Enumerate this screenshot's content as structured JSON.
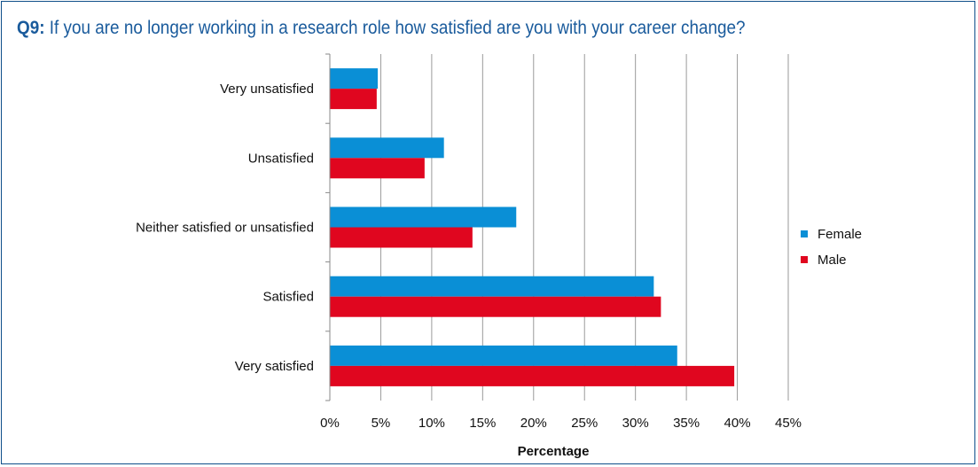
{
  "title": {
    "qnum": "Q9:",
    "text": "If you are no longer working in a research role how satisfied are you with your career change?"
  },
  "chart_data": {
    "type": "bar",
    "orientation": "horizontal",
    "categories": [
      "Very unsatisfied",
      "Unsatisfied",
      "Neither satisfied or unsatisfied",
      "Satisfied",
      "Very satisfied"
    ],
    "series": [
      {
        "name": "Female",
        "color": "#0a8fd6",
        "values": [
          4.7,
          11.2,
          18.3,
          31.8,
          34.1
        ]
      },
      {
        "name": "Male",
        "color": "#e0061f",
        "values": [
          4.6,
          9.3,
          14.0,
          32.5,
          39.7
        ]
      }
    ],
    "xlabel": "Percentage",
    "xlim": [
      0,
      45
    ],
    "xticks": [
      "0%",
      "5%",
      "10%",
      "15%",
      "20%",
      "25%",
      "30%",
      "35%",
      "40%",
      "45%"
    ],
    "grid": true,
    "legend_position": "right"
  }
}
